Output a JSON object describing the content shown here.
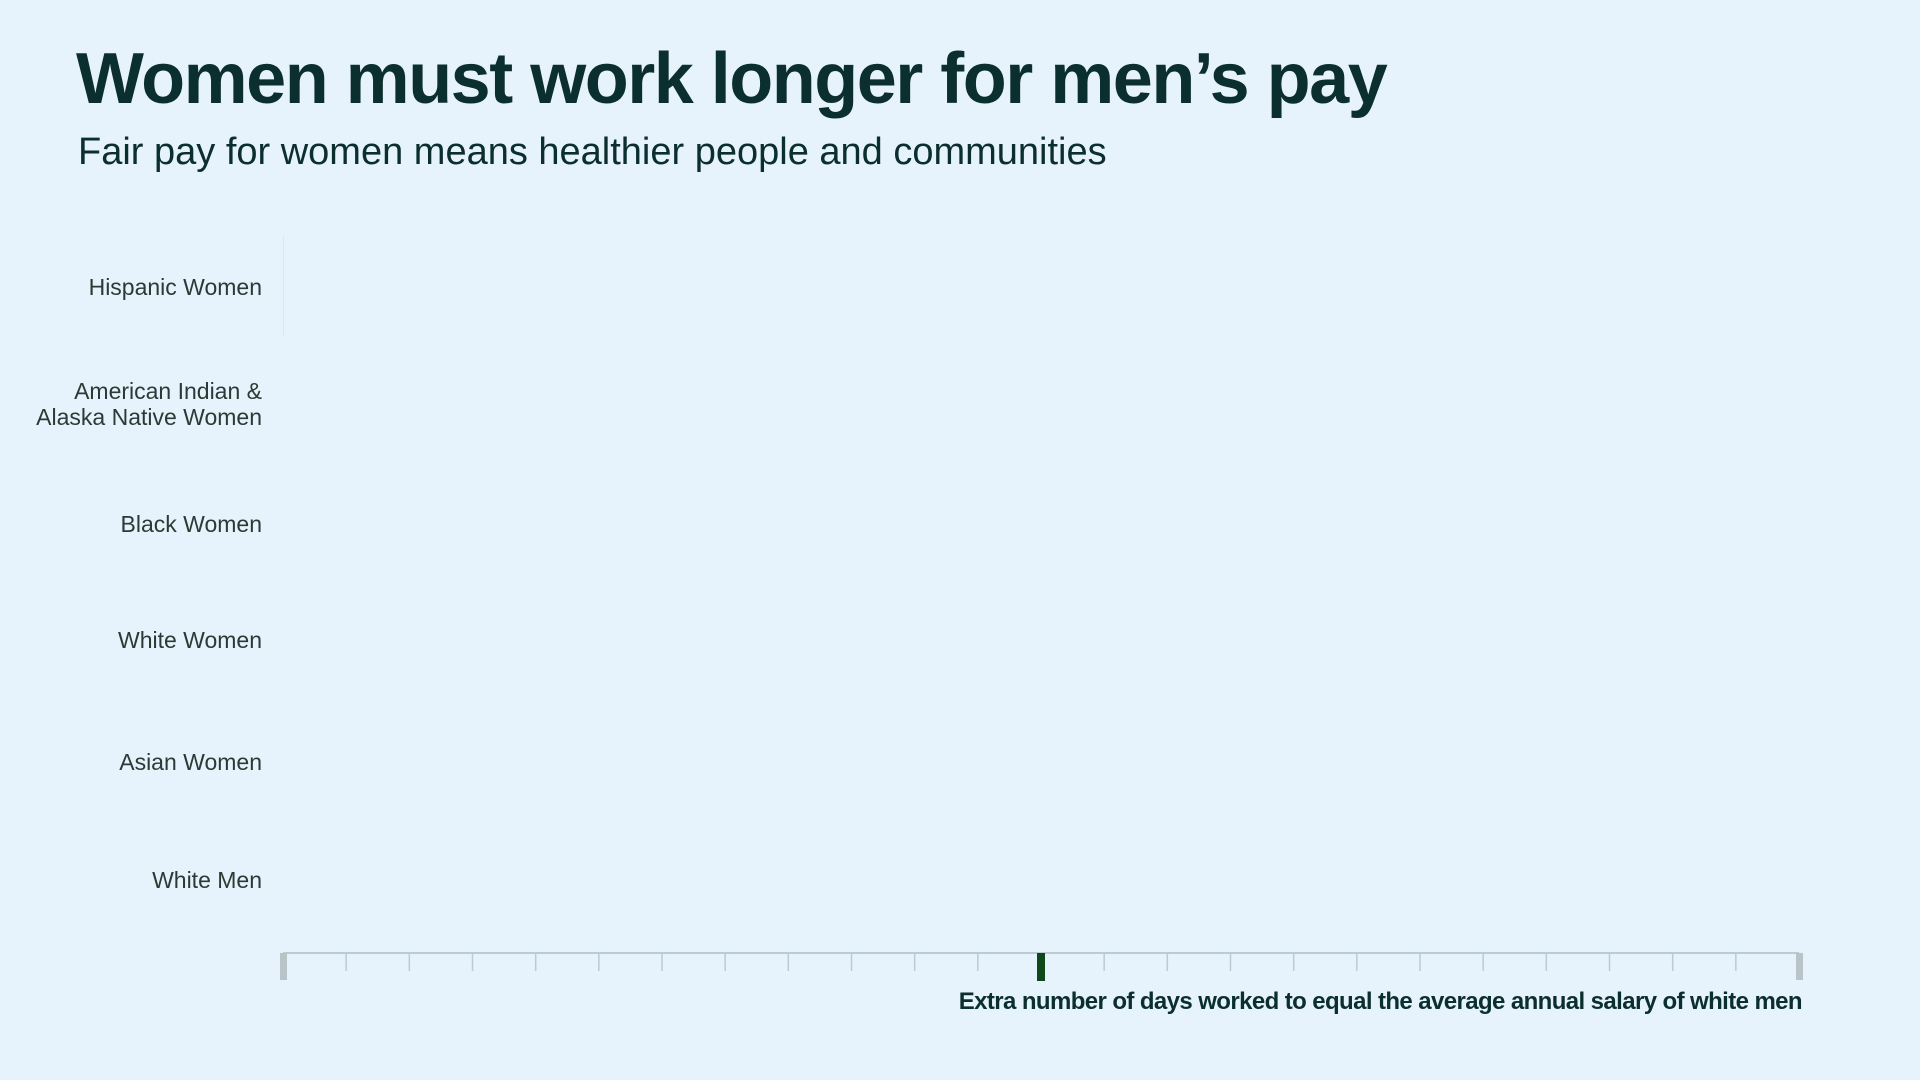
{
  "title": "Women must work longer for men’s pay",
  "subtitle": "Fair pay for women means healthier people and communities",
  "colors": {
    "background": "#e6f3fc",
    "text": "#0b2e2e",
    "axis_line": "#b9ccd1",
    "axis_end_cap": "#b8c4c8",
    "slider_handle": "#0e4a18"
  },
  "chart_data": {
    "type": "bar",
    "orientation": "horizontal",
    "categories": [
      "Hispanic Women",
      "American Indian &\nAlaska Native Women",
      "Black Women",
      "White Women",
      "Asian Women",
      "White Men"
    ],
    "values": [
      0,
      0,
      0,
      0,
      0,
      0
    ],
    "xlabel": "Extra number of days worked to equal the average annual salary of white men",
    "ylabel": "",
    "tick_count": 24,
    "slider_position_fraction": 0.5,
    "grid": false
  }
}
